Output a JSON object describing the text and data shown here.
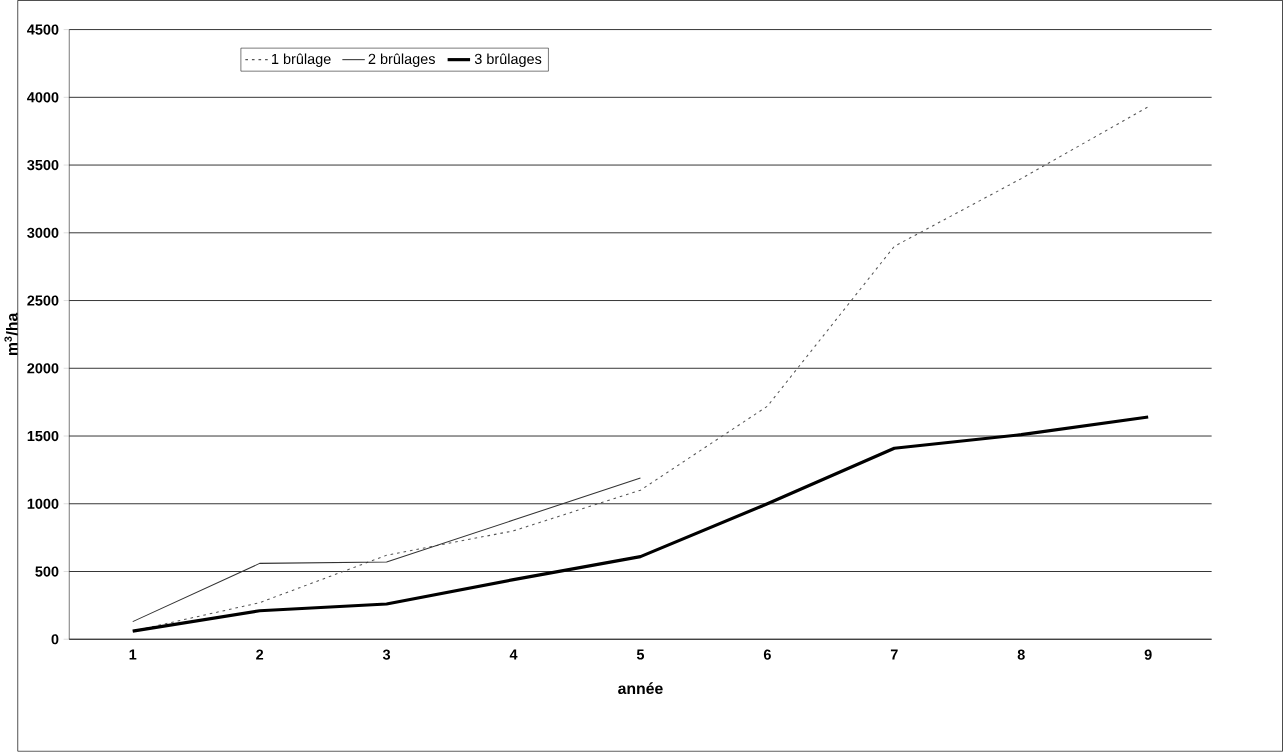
{
  "chart_data": {
    "type": "line",
    "xlabel": "année",
    "ylabel": "m$^{3}$/ha",
    "categories": [
      "1",
      "2",
      "3",
      "4",
      "5",
      "6",
      "7",
      "8",
      "9"
    ],
    "ylim": [
      0,
      4500
    ],
    "yticks": [
      0,
      500,
      1000,
      1500,
      2000,
      2500,
      3000,
      3500,
      4000,
      4500
    ],
    "grid": "y",
    "legend": "top left",
    "marker": "none",
    "series": [
      {
        "name": "1 brûlage",
        "color": "#555555",
        "line_style": "dotted",
        "values": [
          60,
          270,
          620,
          800,
          1100,
          1720,
          2900,
          3400,
          3930
        ]
      },
      {
        "name": "2 brûlages",
        "color": "#333333",
        "line_style": "solid",
        "values": [
          130,
          560,
          570,
          880,
          1190,
          null,
          null,
          null,
          null
        ]
      },
      {
        "name": "3 brûlages",
        "color": "#000000",
        "line_style": "solid",
        "values": [
          60,
          210,
          260,
          440,
          610,
          1000,
          1410,
          1510,
          1640
        ]
      }
    ]
  }
}
